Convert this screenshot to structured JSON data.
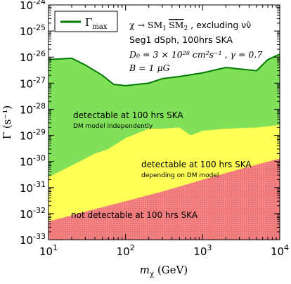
{
  "chart_data": {
    "type": "area",
    "xscale": "log",
    "yscale": "log",
    "xlim": [
      10,
      10000
    ],
    "ylim": [
      1e-33,
      1e-24
    ],
    "xlabel_pre": "m",
    "xlabel_sub": "χ",
    "xlabel_post": " (GeV)",
    "ylabel": "Γ (s⁻¹)",
    "xtick_values": [
      10,
      100,
      1000,
      10000
    ],
    "xtick_base": "10",
    "xtick_exps": [
      "1",
      "2",
      "3",
      "4"
    ],
    "ytick_values": [
      1e-24,
      1e-25,
      1e-26,
      1e-27,
      1e-28,
      1e-29,
      1e-30,
      1e-31,
      1e-32,
      1e-33
    ],
    "ytick_base": "10",
    "ytick_exps": [
      "-24",
      "-25",
      "-26",
      "-27",
      "-28",
      "-29",
      "-30",
      "-31",
      "-32",
      "-33"
    ],
    "legend": {
      "label": "Γ",
      "label_sub": "max",
      "color": "#007a00"
    },
    "annotations": {
      "line1_pre": "χ → SM",
      "line1_sub1": "1",
      "line1_sm2": "SM",
      "line1_sub2": "2",
      "line1_post": " , excluding νν̄",
      "line2": "Seg1 dSph, 100hrs SKA",
      "line3": "D₀ = 3 × 10²⁸ cm²s⁻¹ , γ = 0.7",
      "line4": "B = 1 μG"
    },
    "region_labels": {
      "green_title": "detectable at 100 hrs SKA",
      "green_sub": "DM model independently",
      "yellow_title": "detectable at 100 hrs SKA",
      "yellow_sub": "depending on DM model",
      "red_title": "not detectable at 100 hrs SKA"
    },
    "colors": {
      "green": "#80e05a",
      "yellow": "#ffff55",
      "red": "#f07878",
      "gamma_line": "#007a00"
    },
    "series": [
      {
        "name": "Γmax",
        "x": [
          10,
          20,
          30,
          50,
          70,
          100,
          200,
          300,
          500,
          1000,
          2000,
          3000,
          5000,
          7000,
          10000
        ],
        "y": [
          8e-27,
          9e-27,
          5e-27,
          2e-27,
          9e-28,
          8e-28,
          1e-27,
          1.5e-27,
          1.8e-27,
          2.5e-27,
          4e-27,
          3.5e-27,
          3e-27,
          8e-27,
          1.3e-26
        ]
      },
      {
        "x": [
          10,
          20,
          40,
          60,
          100,
          200,
          300,
          500,
          700,
          1000,
          2000,
          5000,
          10000
        ],
        "y": [
          2.5e-31,
          7e-31,
          2e-30,
          3e-30,
          8e-30,
          1.8e-29,
          1.8e-29,
          2e-29,
          1e-29,
          1.5e-29,
          1.8e-29,
          2e-29,
          2.5e-29
        ]
      },
      {
        "x": [
          10,
          30,
          100,
          300,
          1000,
          3000,
          10000
        ],
        "y": [
          5e-33,
          1.2e-32,
          3e-32,
          7e-32,
          2e-31,
          5e-31,
          1.3e-30
        ]
      }
    ]
  }
}
